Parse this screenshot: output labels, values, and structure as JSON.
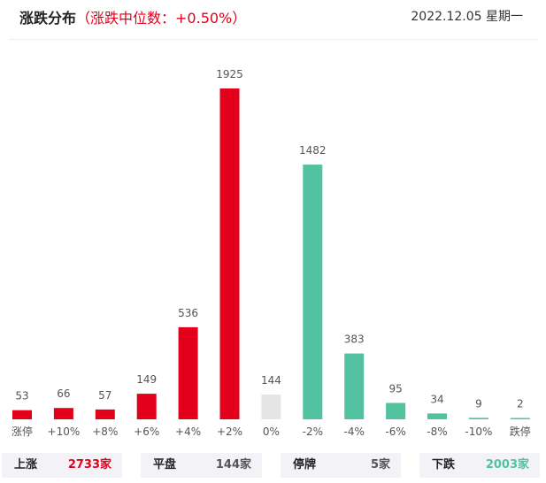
{
  "header": {
    "title": "涨跌分布",
    "median": "（涨跌中位数：+0.50%）",
    "date": "2022.12.05 星期一"
  },
  "colors": {
    "up": "#e2001a",
    "flat": "#e5e5e5",
    "down": "#52c2a0"
  },
  "chart_data": {
    "type": "bar",
    "categories": [
      "涨停",
      "+10%",
      "+8%",
      "+6%",
      "+4%",
      "+2%",
      "0%",
      "-2%",
      "-4%",
      "-6%",
      "-8%",
      "-10%",
      "跌停"
    ],
    "values": [
      53,
      66,
      57,
      149,
      536,
      1925,
      144,
      1482,
      383,
      95,
      34,
      9,
      2
    ],
    "groups": [
      "up",
      "up",
      "up",
      "up",
      "up",
      "up",
      "flat",
      "down",
      "down",
      "down",
      "down",
      "down",
      "down"
    ],
    "title": "涨跌分布",
    "xlabel": "",
    "ylabel": "",
    "ylim": [
      0,
      1925
    ],
    "grid": false
  },
  "summary": {
    "up_label": "上涨",
    "up_value": "2733家",
    "flat_label": "平盘",
    "flat_value": "144家",
    "halt_label": "停牌",
    "halt_value": "5家",
    "down_label": "下跌",
    "down_value": "2003家"
  }
}
